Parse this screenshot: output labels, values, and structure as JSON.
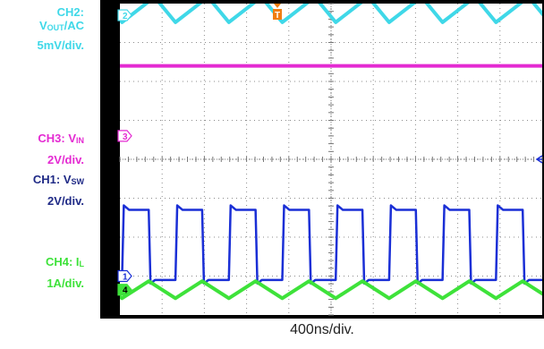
{
  "labels": {
    "ch2_line1": "CH2:",
    "ch2_line2_main": "V",
    "ch2_line2_sub": "OUT",
    "ch2_line2_end": "/AC",
    "ch2_scale": "5mV/div.",
    "ch3_main": "CH3: V",
    "ch3_sub": "IN",
    "ch3_scale": "2V/div.",
    "ch1_main": "CH1: V",
    "ch1_sub": "SW",
    "ch1_scale": "2V/div.",
    "ch4_main": "CH4: I",
    "ch4_sub": "L",
    "ch4_scale": "1A/div."
  },
  "colors": {
    "ch1": "#1a2fd6",
    "ch2": "#3fd8e8",
    "ch3": "#e42ad2",
    "ch4": "#3ee23a",
    "trigger": "#f07d10",
    "grid": "#8c8c8c"
  },
  "chart_data": {
    "type": "line",
    "xlabel": "400ns/div.",
    "x_units": "ns",
    "x_per_div": 400,
    "divisions_x": 10,
    "divisions_y": 8,
    "trigger_marker": "T",
    "switching_period_ns": 506,
    "duty_cycle": 0.5,
    "series": [
      {
        "name": "CH1: VSW",
        "marker": "1",
        "scale": "2V/div.",
        "shape": "square",
        "low_div": -0.1,
        "high_div": 1.7,
        "zero_div": 1.0
      },
      {
        "name": "CH2: VOUT/AC",
        "marker": "2",
        "scale": "5mV/div.",
        "shape": "sawtooth",
        "amplitude_div": 0.45,
        "zero_div": 7.7
      },
      {
        "name": "CH3: VIN",
        "marker": "3",
        "scale": "2V/div.",
        "shape": "dc",
        "level_div": 6.4,
        "zero_div": 4.6
      },
      {
        "name": "CH4: IL",
        "marker": "4",
        "scale": "1A/div.",
        "shape": "triangle",
        "amplitude_div": 0.22,
        "zero_div": 0.65
      }
    ]
  }
}
